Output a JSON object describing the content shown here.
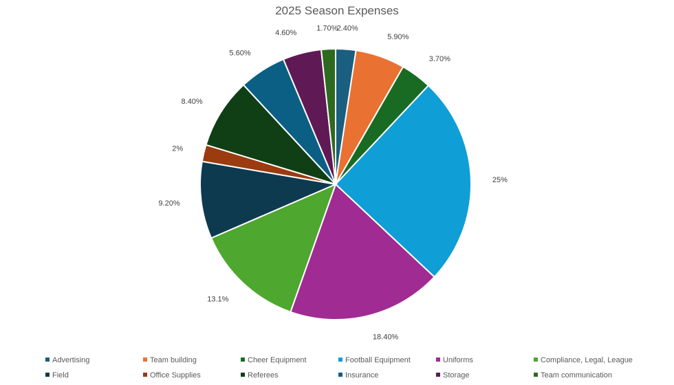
{
  "chart_data": {
    "type": "pie",
    "title": "2025 Season Expenses",
    "slices": [
      {
        "name": "Advertising",
        "value": 2.4,
        "label": "2.40%",
        "color": "#1a5e80"
      },
      {
        "name": "Team building",
        "value": 5.9,
        "label": "5.90%",
        "color": "#e97132"
      },
      {
        "name": "Cheer Equipment",
        "value": 3.7,
        "label": "3.70%",
        "color": "#196b24"
      },
      {
        "name": "Football Equipment",
        "value": 25,
        "label": "25%",
        "color": "#0f9ed5"
      },
      {
        "name": "Uniforms",
        "value": 18.4,
        "label": "18.40%",
        "color": "#a02b93"
      },
      {
        "name": "Compliance, Legal, League",
        "value": 13.1,
        "label": "13.1%",
        "color": "#4ea72e"
      },
      {
        "name": "Field",
        "value": 9.2,
        "label": "9.20%",
        "color": "#0e3a50"
      },
      {
        "name": "Office Supplies",
        "value": 2,
        "label": "2%",
        "color": "#9a3b10"
      },
      {
        "name": "Referees",
        "value": 8.4,
        "label": "8.40%",
        "color": "#113f15"
      },
      {
        "name": "Insurance",
        "value": 5.6,
        "label": "5.60%",
        "color": "#0b5f84"
      },
      {
        "name": "Storage",
        "value": 4.6,
        "label": "4.60%",
        "color": "#5f1a55"
      },
      {
        "name": "Team communication",
        "value": 1.7,
        "label": "1.70%",
        "color": "#2d6a1f"
      }
    ],
    "legend_position": "bottom"
  }
}
